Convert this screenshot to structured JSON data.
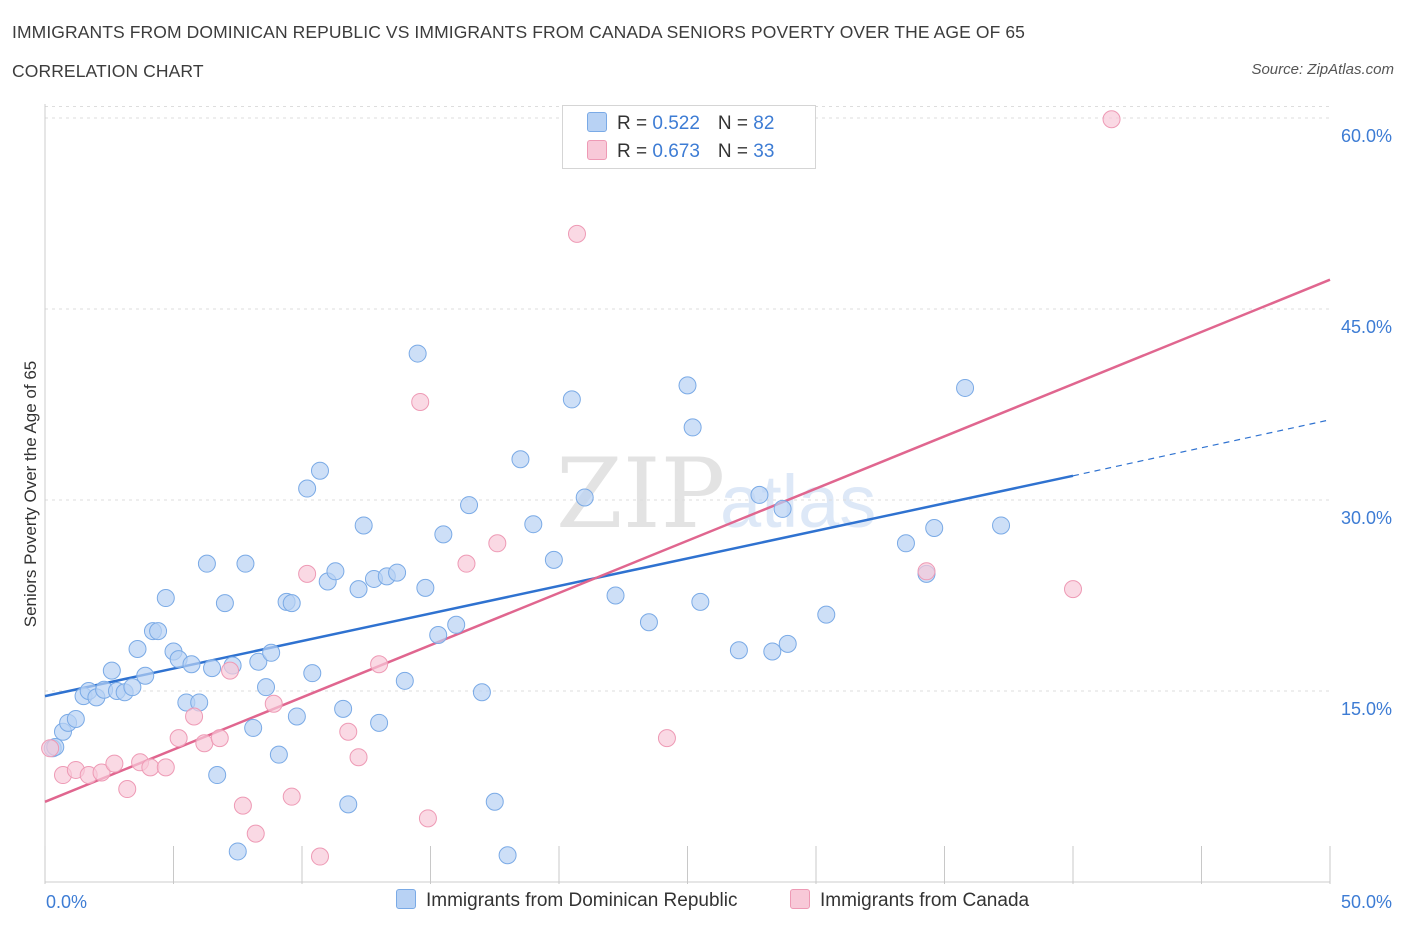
{
  "header": {
    "title": "IMMIGRANTS FROM DOMINICAN REPUBLIC VS IMMIGRANTS FROM CANADA SENIORS POVERTY OVER THE AGE OF 65",
    "subtitle": "CORRELATION CHART",
    "source": "Source: ZipAtlas.com"
  },
  "watermark": {
    "zip": "ZIP",
    "atlas": "atlas"
  },
  "legend": {
    "rows": [
      {
        "r_label": "R = ",
        "r_value": "0.522",
        "n_label": "N = ",
        "n_value": "82"
      },
      {
        "r_label": "R = ",
        "r_value": "0.673",
        "n_label": "N = ",
        "n_value": "33"
      }
    ]
  },
  "bottom_legend": {
    "dominican": "Immigrants from Dominican Republic",
    "canada": "Immigrants from Canada"
  },
  "colors": {
    "dominican_fill": "#b8d2f4",
    "dominican_stroke": "#7aaae6",
    "dominican_line": "#2f72d0",
    "canada_fill": "#f8c9d8",
    "canada_stroke": "#ee9ab5",
    "canada_line": "#e0668f",
    "tick_text": "#3d7cd4",
    "grid": "#dddddd"
  },
  "chart_data": {
    "type": "scatter",
    "title": "IMMIGRANTS FROM DOMINICAN REPUBLIC VS IMMIGRANTS FROM CANADA SENIORS POVERTY OVER THE AGE OF 65",
    "xlabel": "",
    "ylabel": "Seniors Poverty Over the Age of 65",
    "xlim": [
      0,
      50
    ],
    "ylim": [
      0,
      60
    ],
    "x_tick_labels": [
      "0.0%",
      "50.0%"
    ],
    "y_ticks": [
      15,
      30,
      45,
      60
    ],
    "y_tick_labels": [
      "15.0%",
      "30.0%",
      "45.0%",
      "60.0%"
    ],
    "grid": true,
    "legend_position": "top-center",
    "series": [
      {
        "name": "Immigrants from Dominican Republic",
        "R": 0.522,
        "N": 82,
        "trend": {
          "x": [
            0,
            40
          ],
          "y": [
            14.6,
            31.9
          ],
          "dashed_to": [
            50,
            36.3
          ]
        },
        "points": [
          [
            0.3,
            10.5
          ],
          [
            0.7,
            11.8
          ],
          [
            0.9,
            12.5
          ],
          [
            1.2,
            12.8
          ],
          [
            1.5,
            14.6
          ],
          [
            1.7,
            15.0
          ],
          [
            2.0,
            14.5
          ],
          [
            2.3,
            15.1
          ],
          [
            2.6,
            16.6
          ],
          [
            2.8,
            15.0
          ],
          [
            3.1,
            14.9
          ],
          [
            3.4,
            15.3
          ],
          [
            3.6,
            18.3
          ],
          [
            3.9,
            16.2
          ],
          [
            4.2,
            19.7
          ],
          [
            4.4,
            19.7
          ],
          [
            4.7,
            22.3
          ],
          [
            5.0,
            18.1
          ],
          [
            5.2,
            17.5
          ],
          [
            5.5,
            14.1
          ],
          [
            5.7,
            17.1
          ],
          [
            6.0,
            14.1
          ],
          [
            6.3,
            25.0
          ],
          [
            6.5,
            16.8
          ],
          [
            6.7,
            8.4
          ],
          [
            7.0,
            21.9
          ],
          [
            7.3,
            17.0
          ],
          [
            7.5,
            2.4
          ],
          [
            7.8,
            25.0
          ],
          [
            8.1,
            12.1
          ],
          [
            8.3,
            17.3
          ],
          [
            8.6,
            15.3
          ],
          [
            8.8,
            18.0
          ],
          [
            9.1,
            10.0
          ],
          [
            9.4,
            22.0
          ],
          [
            9.6,
            21.9
          ],
          [
            9.8,
            13.0
          ],
          [
            10.2,
            30.9
          ],
          [
            10.4,
            16.4
          ],
          [
            10.7,
            32.3
          ],
          [
            11.0,
            23.6
          ],
          [
            11.3,
            24.4
          ],
          [
            11.6,
            13.6
          ],
          [
            11.8,
            6.1
          ],
          [
            12.2,
            23.0
          ],
          [
            12.4,
            28.0
          ],
          [
            12.8,
            23.8
          ],
          [
            13.0,
            12.5
          ],
          [
            13.3,
            24.0
          ],
          [
            13.7,
            24.3
          ],
          [
            14.0,
            15.8
          ],
          [
            14.5,
            41.5
          ],
          [
            14.8,
            23.1
          ],
          [
            15.3,
            19.4
          ],
          [
            15.5,
            27.3
          ],
          [
            16.0,
            20.2
          ],
          [
            16.5,
            29.6
          ],
          [
            17.0,
            14.9
          ],
          [
            17.5,
            6.3
          ],
          [
            18.0,
            2.1
          ],
          [
            18.5,
            33.2
          ],
          [
            19.0,
            28.1
          ],
          [
            19.8,
            25.3
          ],
          [
            20.5,
            37.9
          ],
          [
            21.0,
            30.2
          ],
          [
            22.2,
            22.5
          ],
          [
            23.5,
            20.4
          ],
          [
            25.0,
            39.0
          ],
          [
            25.2,
            35.7
          ],
          [
            25.5,
            22.0
          ],
          [
            27.0,
            18.2
          ],
          [
            27.8,
            30.4
          ],
          [
            28.3,
            18.1
          ],
          [
            28.7,
            29.3
          ],
          [
            28.9,
            18.7
          ],
          [
            30.4,
            21.0
          ],
          [
            33.5,
            26.6
          ],
          [
            34.3,
            24.2
          ],
          [
            34.6,
            27.8
          ],
          [
            35.8,
            38.8
          ],
          [
            37.2,
            28.0
          ],
          [
            0.4,
            10.6
          ]
        ]
      },
      {
        "name": "Immigrants from Canada",
        "R": 0.673,
        "N": 33,
        "trend": {
          "x": [
            0,
            50
          ],
          "y": [
            6.3,
            47.3
          ]
        },
        "points": [
          [
            0.2,
            10.5
          ],
          [
            0.7,
            8.4
          ],
          [
            1.2,
            8.8
          ],
          [
            1.7,
            8.4
          ],
          [
            2.2,
            8.6
          ],
          [
            2.7,
            9.3
          ],
          [
            3.2,
            7.3
          ],
          [
            3.7,
            9.4
          ],
          [
            4.1,
            9.0
          ],
          [
            4.7,
            9.0
          ],
          [
            5.2,
            11.3
          ],
          [
            5.8,
            13.0
          ],
          [
            6.2,
            10.9
          ],
          [
            6.8,
            11.3
          ],
          [
            7.2,
            16.6
          ],
          [
            7.7,
            6.0
          ],
          [
            8.2,
            3.8
          ],
          [
            8.9,
            14.0
          ],
          [
            9.6,
            6.7
          ],
          [
            10.2,
            24.2
          ],
          [
            10.7,
            2.0
          ],
          [
            11.8,
            11.8
          ],
          [
            12.2,
            9.8
          ],
          [
            13.0,
            17.1
          ],
          [
            14.6,
            37.7
          ],
          [
            14.9,
            5.0
          ],
          [
            16.4,
            25.0
          ],
          [
            17.6,
            26.6
          ],
          [
            20.7,
            50.9
          ],
          [
            24.2,
            11.3
          ],
          [
            34.3,
            24.4
          ],
          [
            40.0,
            23.0
          ],
          [
            41.5,
            59.9
          ]
        ]
      }
    ]
  }
}
